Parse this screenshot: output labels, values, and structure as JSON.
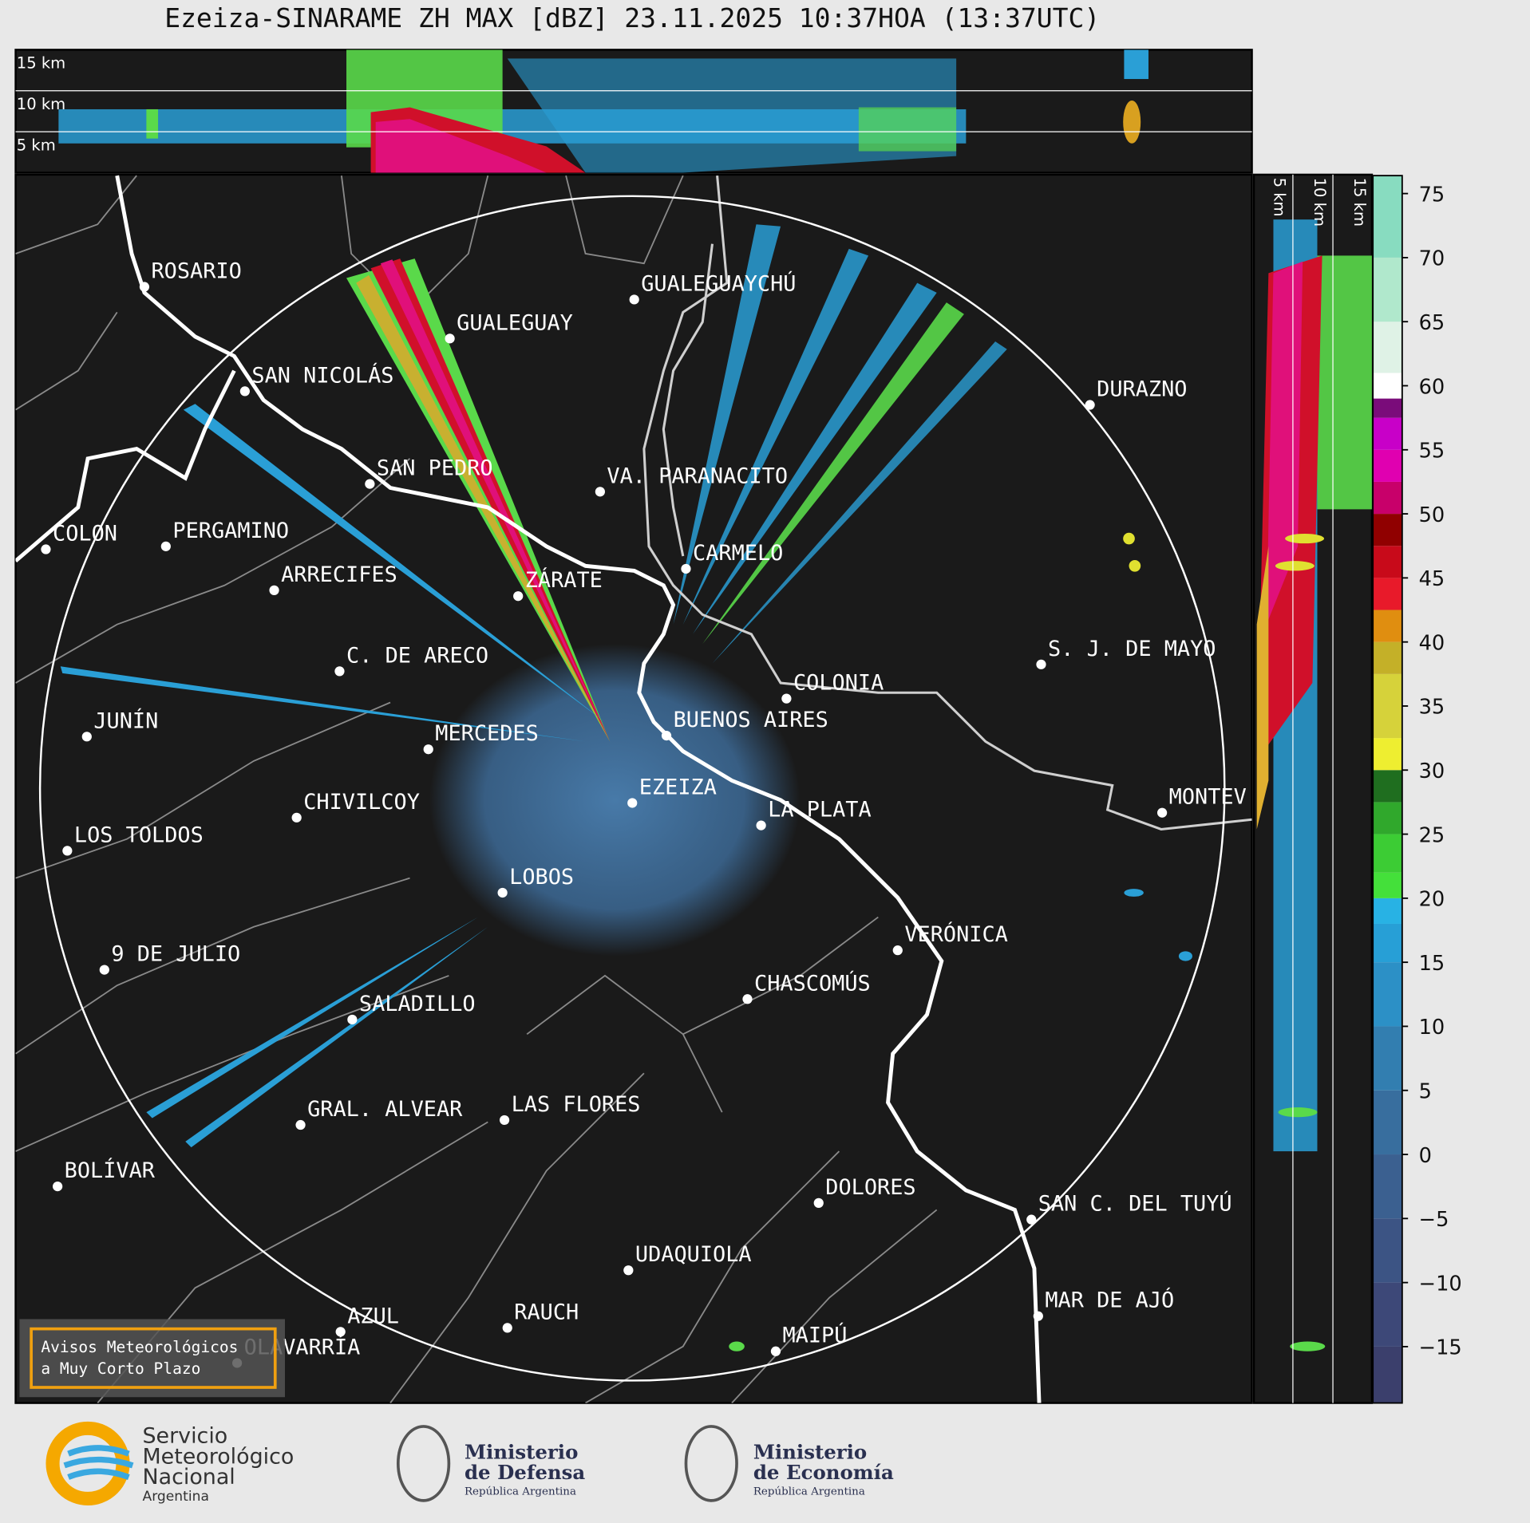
{
  "title": "Ezeiza-SINARAME ZH MAX [dBZ] 23.11.2025 10:37HOA (13:37UTC)",
  "altitude_labels_top": [
    "15 km",
    "10 km",
    "5 km"
  ],
  "altitude_labels_side": [
    "5 km",
    "10 km",
    "15 km"
  ],
  "cities": [
    "ROSARIO",
    "GUALEGUAYCHÚ",
    "GUALEGUAY",
    "SAN NICOLÁS",
    "DURAZNO",
    "SAN PEDRO",
    "VA. PARANACITO",
    "COLON",
    "PERGAMINO",
    "CARMELO",
    "ARRECIFES",
    "ZÁRATE",
    "S. J. DE MAYO",
    "C. DE ARECO",
    "COLONIA",
    "BUENOS AIRES",
    "JUNÍN",
    "MERCEDES",
    "EZEIZA",
    "MONTEV",
    "CHIVILCOY",
    "LA PLATA",
    "LOS TOLDOS",
    "LOBOS",
    "VERÓNICA",
    "9 DE JULIO",
    "CHASCOMÚS",
    "SALADILLO",
    "GRAL. ALVEAR",
    "LAS FLORES",
    "BOLÍVAR",
    "DOLORES",
    "SAN C. DEL TUYÚ",
    "UDAQUIOLA",
    "RAUCH",
    "MAR DE AJÓ",
    "AZUL",
    "MAIPÚ",
    "OLAVARRÍA"
  ],
  "colorbar": {
    "lim": [
      -19.4,
      76.4
    ],
    "ticks": [
      75,
      70,
      65,
      60,
      55,
      50,
      45,
      40,
      35,
      30,
      25,
      20,
      15,
      10,
      5,
      0,
      {
        "value": -5,
        "label": "−5"
      },
      {
        "value": -10,
        "label": "−10"
      },
      {
        "value": -15,
        "label": "−15"
      }
    ]
  },
  "notice": [
    "Avisos Meteorológicos",
    "a Muy Corto Plazo"
  ],
  "logos": [
    {
      "lines": [
        "Servicio",
        "Meteorológico",
        "Nacional",
        "Argentina"
      ]
    },
    {
      "lines": [
        "Ministerio",
        "de Defensa",
        "República Argentina"
      ]
    },
    {
      "lines": [
        "Ministerio",
        "de Economía",
        "República Argentina"
      ]
    }
  ]
}
